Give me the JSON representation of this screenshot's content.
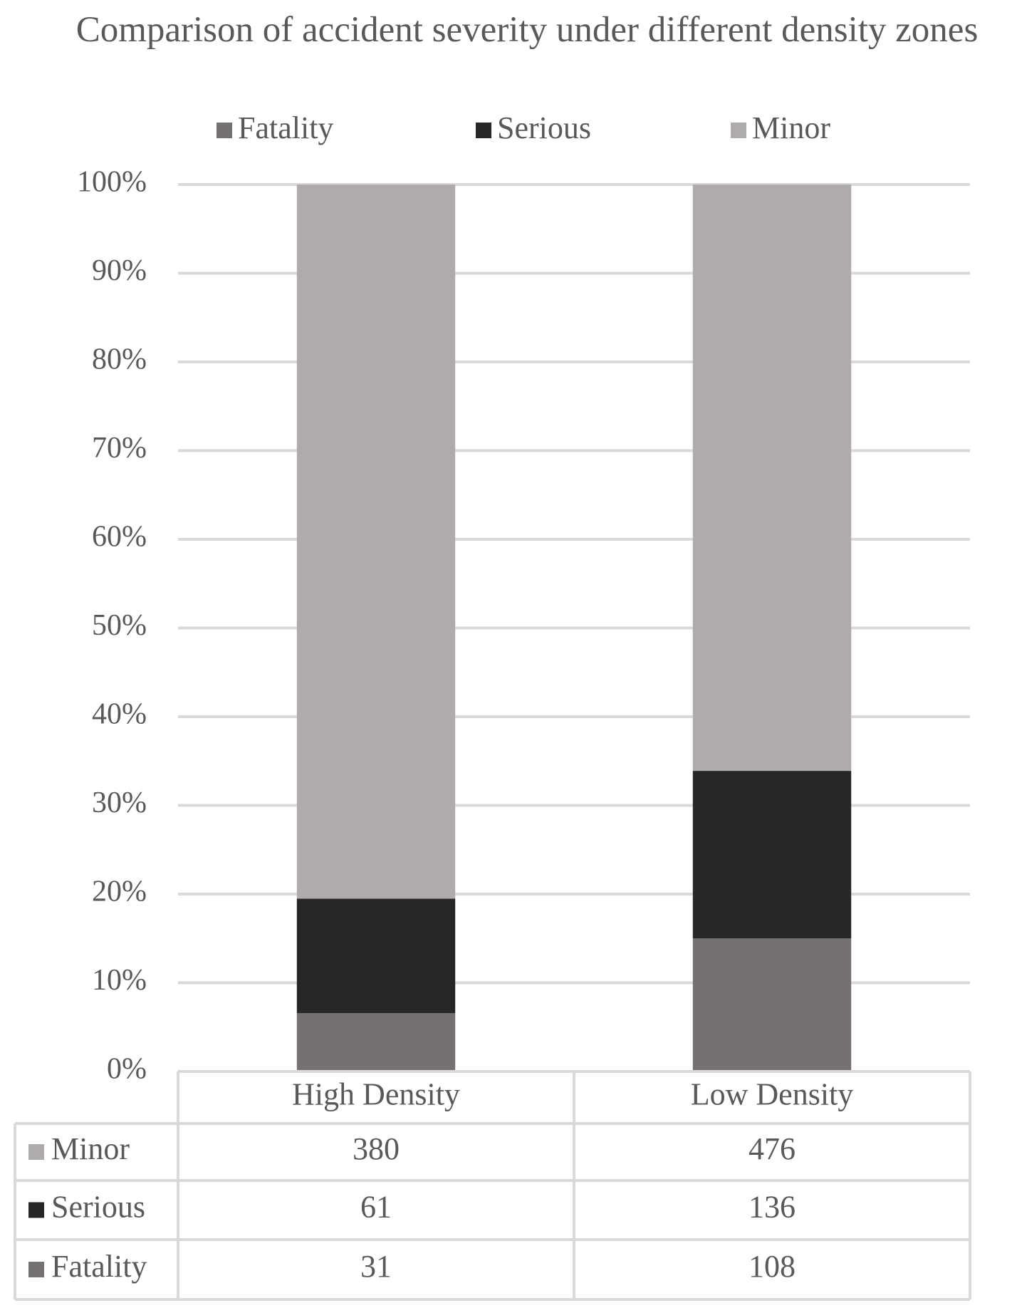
{
  "chart_data": {
    "type": "bar",
    "stacking": "percent",
    "title": "Comparison of accident severity under different density zones",
    "categories": [
      "High Density",
      "Low Density"
    ],
    "series": [
      {
        "name": "Fatality",
        "color": "#757170",
        "values": [
          31,
          108
        ]
      },
      {
        "name": "Serious",
        "color": "#262626",
        "values": [
          61,
          136
        ]
      },
      {
        "name": "Minor",
        "color": "#afabab",
        "values": [
          380,
          476
        ]
      }
    ],
    "ylim": [
      0,
      100
    ],
    "yticks": [
      {
        "value": 0,
        "label": "0%"
      },
      {
        "value": 10,
        "label": "10%"
      },
      {
        "value": 20,
        "label": "20%"
      },
      {
        "value": 30,
        "label": "30%"
      },
      {
        "value": 40,
        "label": "40%"
      },
      {
        "value": 50,
        "label": "50%"
      },
      {
        "value": 60,
        "label": "60%"
      },
      {
        "value": 70,
        "label": "70%"
      },
      {
        "value": 80,
        "label": "80%"
      },
      {
        "value": 90,
        "label": "90%"
      },
      {
        "value": 100,
        "label": "100%"
      }
    ],
    "grid": true,
    "legend": "top",
    "data_table": true
  }
}
